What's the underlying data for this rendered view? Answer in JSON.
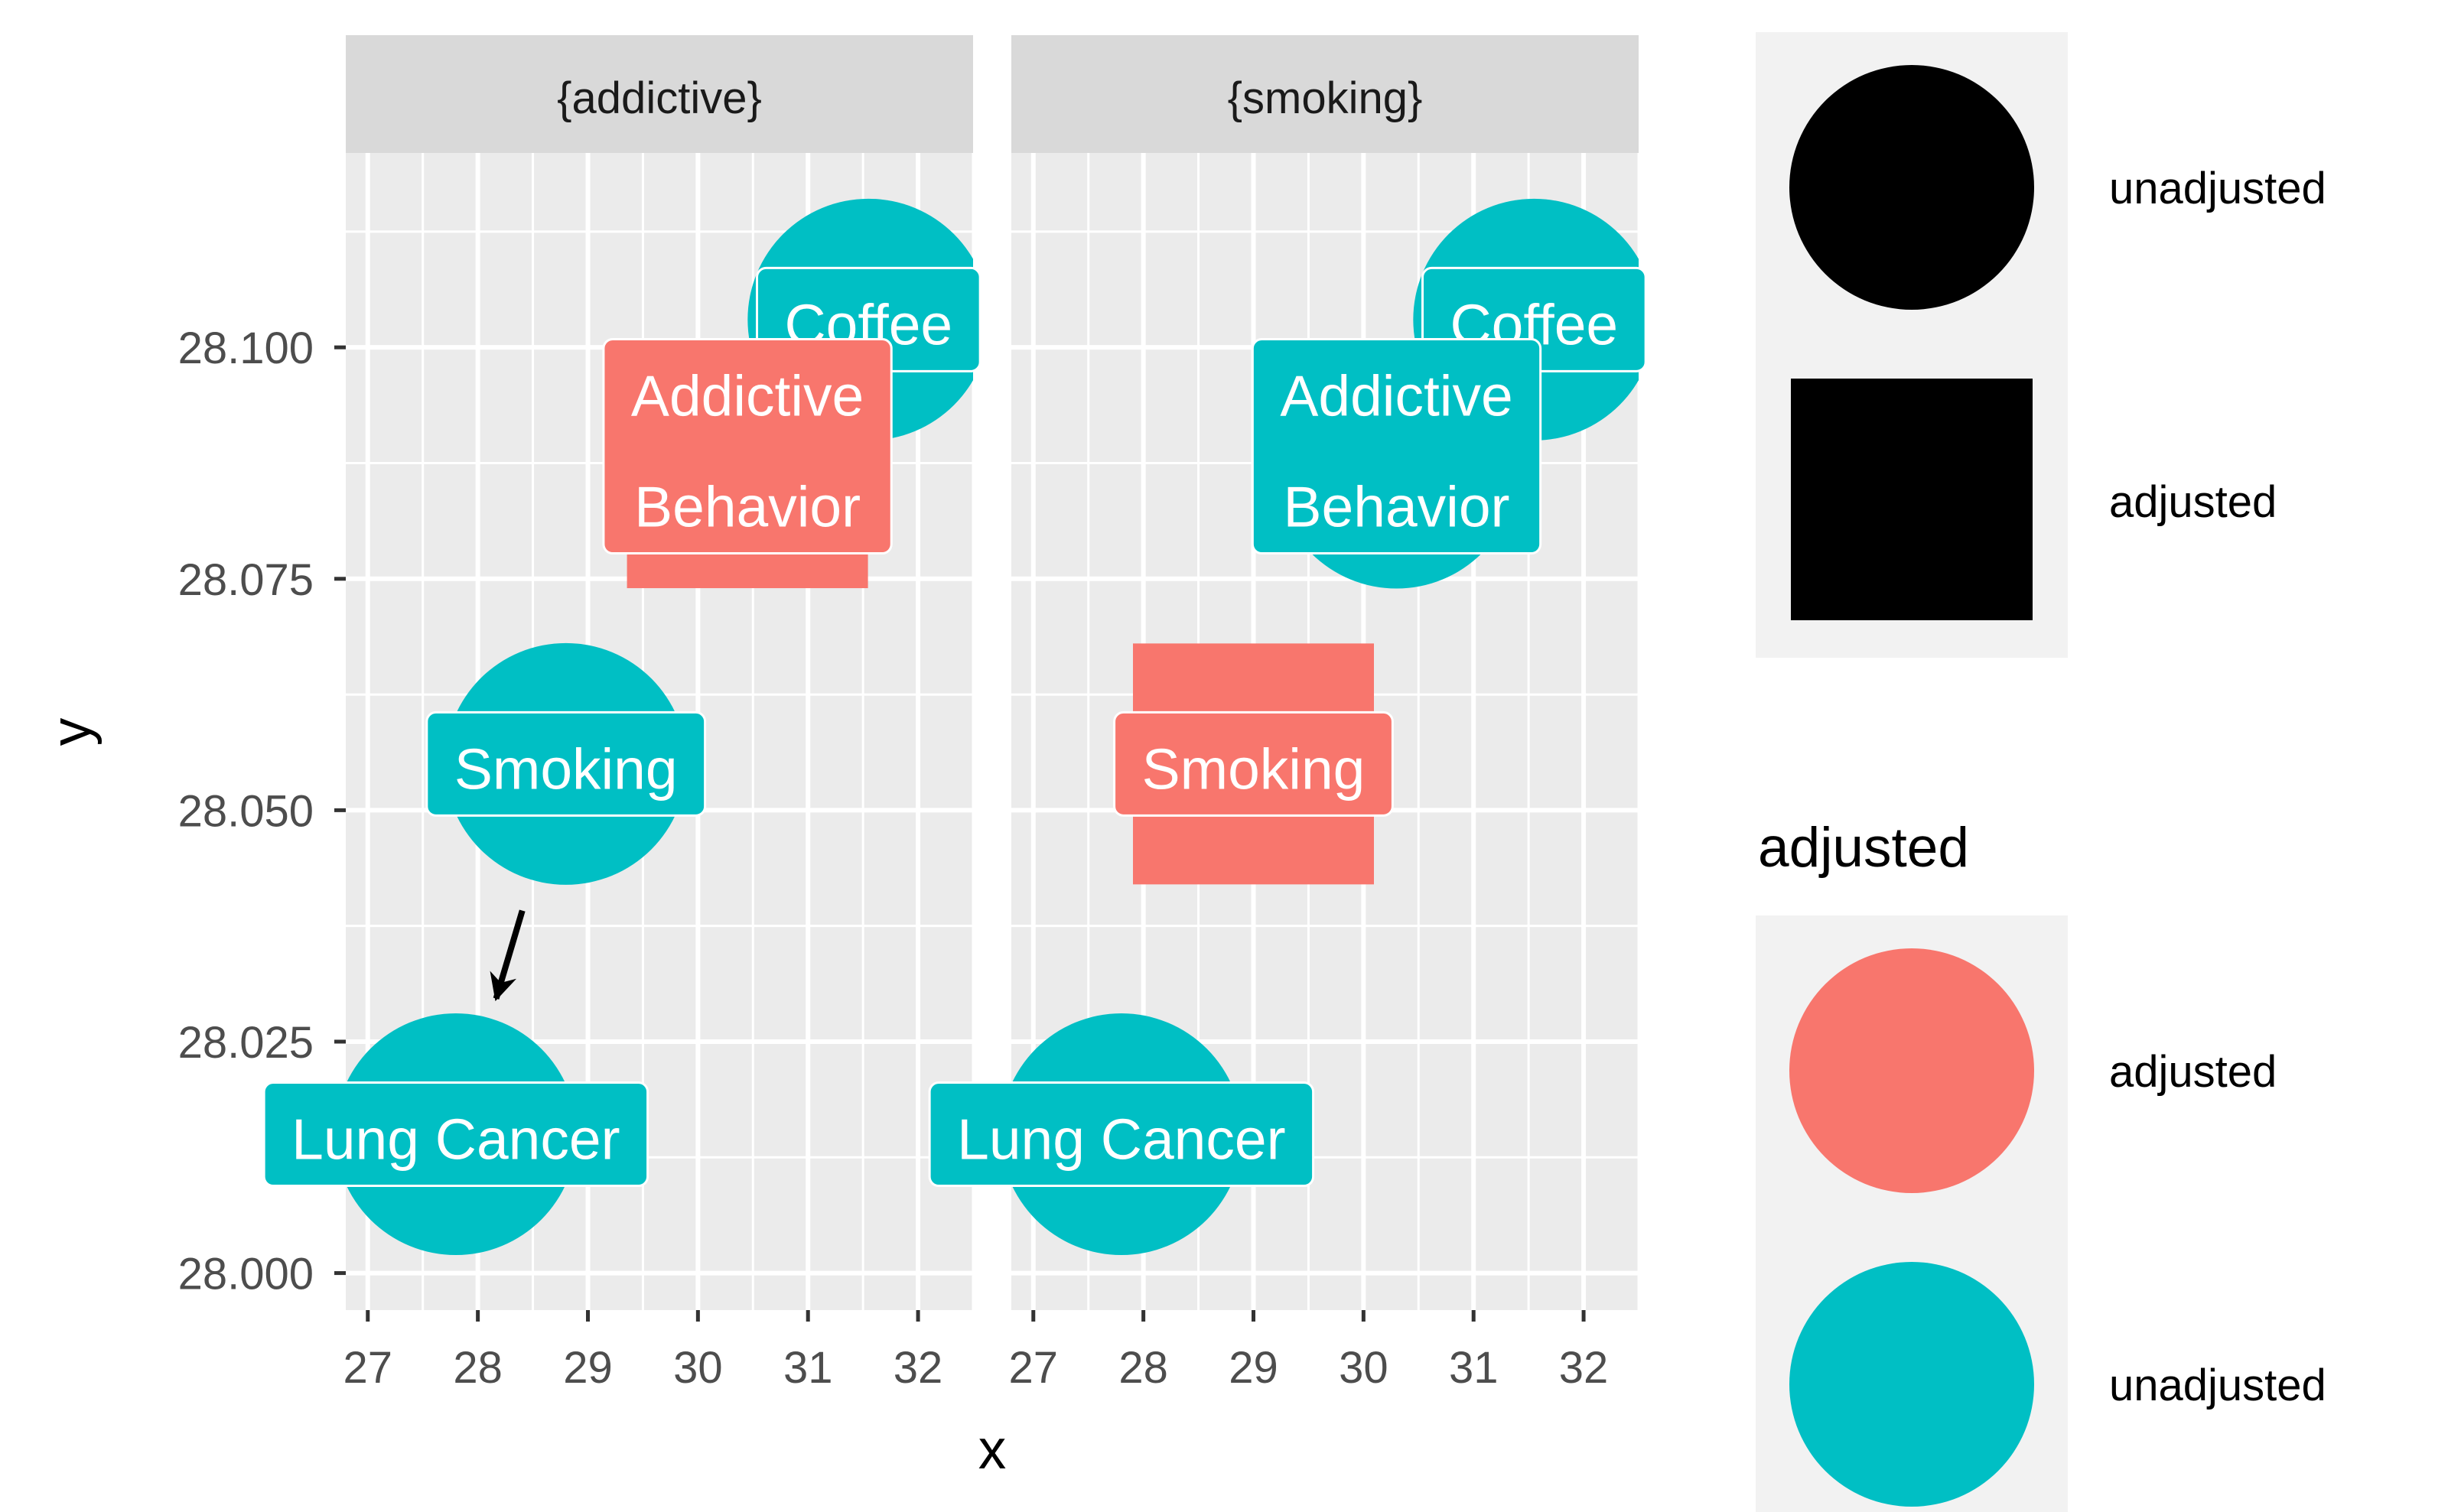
{
  "chart_data": {
    "type": "scatter",
    "xlabel": "x",
    "ylabel": "y",
    "xlim": [
      26.8,
      32.5
    ],
    "ylim": [
      27.996,
      28.121
    ],
    "x_ticks": [
      27,
      28,
      29,
      30,
      31,
      32
    ],
    "y_ticks": [
      28.0,
      28.025,
      28.05,
      28.075,
      28.1
    ],
    "y_tick_labels": [
      "28.000",
      "28.025",
      "28.050",
      "28.075",
      "28.100"
    ],
    "grid": true,
    "colors": {
      "adjusted": "#F8766D",
      "unadjusted": "#00BFC4",
      "panel_bg": "#EBEBEB",
      "strip_bg": "#D9D9D9",
      "legend_bg": "#F2F2F2"
    },
    "panels": [
      {
        "strip": "{addictive}",
        "nodes": [
          {
            "label": "Coffee",
            "x": 31.55,
            "y": 28.103,
            "adjusted": "unadjusted",
            "shape": "circle"
          },
          {
            "label": "Addictive\nBehavior",
            "x": 30.45,
            "y": 28.087,
            "adjusted": "adjusted",
            "shape": "square"
          },
          {
            "label": "Smoking",
            "x": 28.8,
            "y": 28.055,
            "adjusted": "unadjusted",
            "shape": "circle"
          },
          {
            "label": "Lung Cancer",
            "x": 27.8,
            "y": 28.015,
            "adjusted": "unadjusted",
            "shape": "circle"
          }
        ],
        "edges": [
          {
            "from": "Smoking",
            "to": "Lung Cancer"
          }
        ]
      },
      {
        "strip": "{smoking}",
        "nodes": [
          {
            "label": "Coffee",
            "x": 31.55,
            "y": 28.103,
            "adjusted": "unadjusted",
            "shape": "circle"
          },
          {
            "label": "Addictive\nBehavior",
            "x": 30.3,
            "y": 28.087,
            "adjusted": "unadjusted",
            "shape": "circle"
          },
          {
            "label": "Smoking",
            "x": 29.0,
            "y": 28.055,
            "adjusted": "adjusted",
            "shape": "square"
          },
          {
            "label": "Lung Cancer",
            "x": 27.8,
            "y": 28.015,
            "adjusted": "unadjusted",
            "shape": "circle"
          }
        ],
        "edges": []
      }
    ],
    "legends": [
      {
        "title": "",
        "kind": "shape",
        "entries": [
          {
            "label": "unadjusted",
            "shape": "circle",
            "color": "#000000"
          },
          {
            "label": "adjusted",
            "shape": "square",
            "color": "#000000"
          }
        ]
      },
      {
        "title": "adjusted",
        "kind": "color",
        "entries": [
          {
            "label": "adjusted",
            "shape": "circle",
            "color": "#F8766D"
          },
          {
            "label": "unadjusted",
            "shape": "circle",
            "color": "#00BFC4"
          }
        ]
      }
    ]
  }
}
